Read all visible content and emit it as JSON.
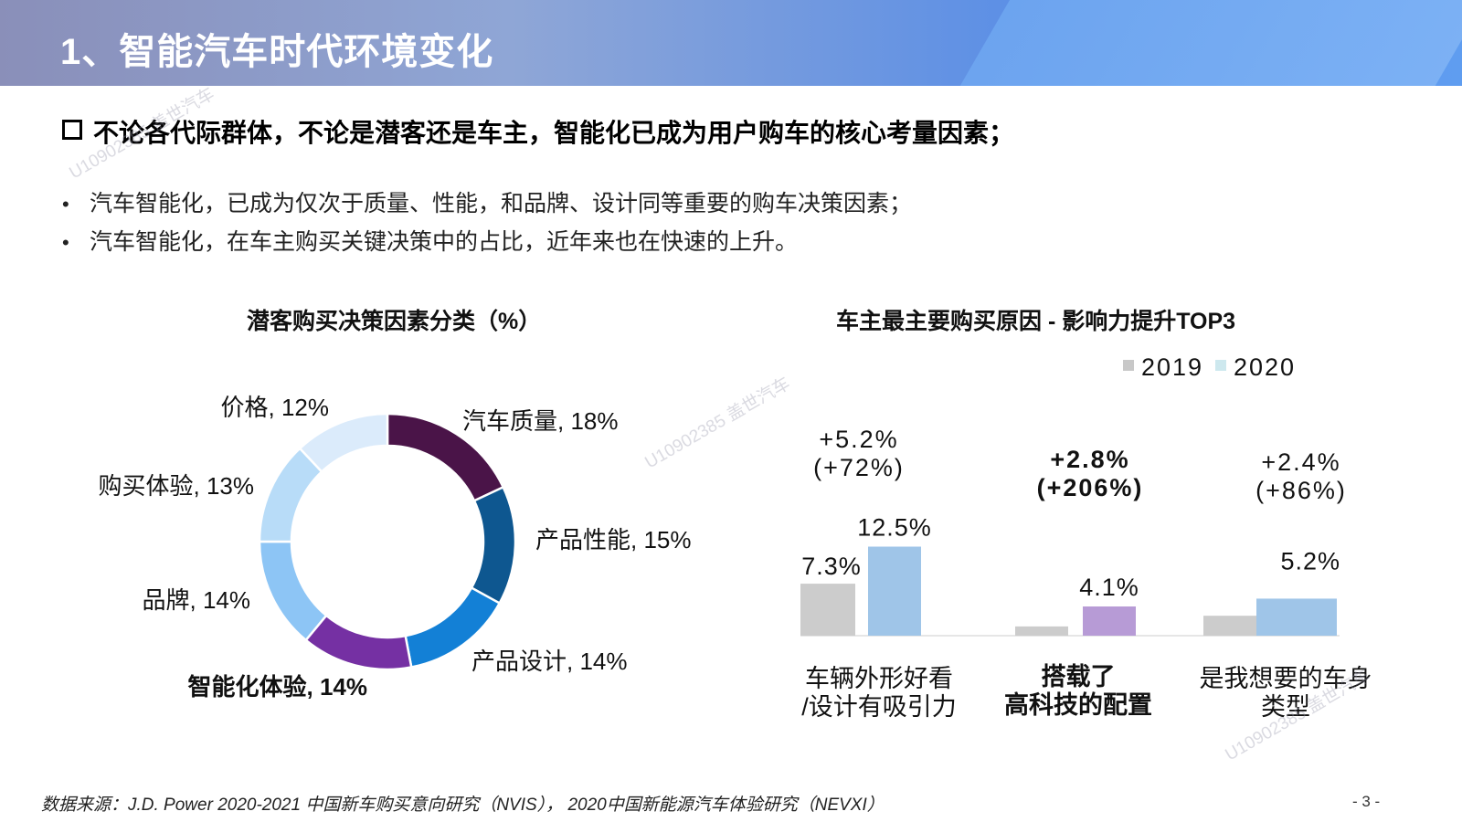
{
  "header": {
    "title": "1、智能汽车时代环境变化"
  },
  "headline": "不论各代际群体，不论是潜客还是车主，智能化已成为用户购车的核心考量因素；",
  "bullets": [
    "汽车智能化，已成为仅次于质量、性能，和品牌、设计同等重要的购车决策因素；",
    "汽车智能化，在车主购买关键决策中的占比，近年来也在快速的上升。"
  ],
  "watermark": "U10902385 盖世汽车",
  "footer": "数据来源：J.D. Power 2020-2021 中国新车购买意向研究（NVIS）， 2020中国新能源汽车体验研究（NEVXI）",
  "page_number": "- 3 -",
  "chart_data": [
    {
      "type": "pie",
      "title": "潜客购买决策因素分类（%）",
      "slices": [
        {
          "label": "汽车质量, 18%",
          "value": 18,
          "color": "#4a1448",
          "bold": false
        },
        {
          "label": "产品性能, 15%",
          "value": 15,
          "color": "#0e5790",
          "bold": false
        },
        {
          "label": "产品设计, 14%",
          "value": 14,
          "color": "#1380d6",
          "bold": false
        },
        {
          "label": "智能化体验, 14%",
          "value": 14,
          "color": "#7530a3",
          "bold": true
        },
        {
          "label": "品牌, 14%",
          "value": 14,
          "color": "#8dc5f5",
          "bold": false
        },
        {
          "label": "购买体验, 13%",
          "value": 13,
          "color": "#b8dcf8",
          "bold": false
        },
        {
          "label": "价格, 12%",
          "value": 12,
          "color": "#dbebfb",
          "bold": false
        }
      ]
    },
    {
      "type": "bar",
      "title": "车主最主要购买原因 - 影响力提升TOP3",
      "legend_position": "top-right",
      "series": [
        {
          "name": "2019",
          "color": "#cccccc",
          "values": [
            7.3,
            1.3,
            2.8
          ]
        },
        {
          "name": "2020",
          "color": "#9fc5e8",
          "values": [
            12.5,
            4.1,
            5.2
          ]
        }
      ],
      "legend_colors": [
        "#c8c8c8",
        "#cde8ee"
      ],
      "categories": [
        {
          "lines": [
            "车辆外形好看",
            "/设计有吸引力"
          ],
          "bold": false
        },
        {
          "lines": [
            "搭载了",
            "高科技的配置"
          ],
          "bold": true
        },
        {
          "lines": [
            "是我想要的车身",
            "类型"
          ],
          "bold": false
        }
      ],
      "bar_value_labels": [
        {
          "text2019": "7.3%",
          "text2020": "12.5%"
        },
        {
          "text2019": "",
          "text2020": "4.1%"
        },
        {
          "text2019": "",
          "text2020": "5.2%"
        }
      ],
      "highlight_2020_colors": [
        "#9fc5e8",
        "#b79bd6",
        "#9fc5e8"
      ],
      "increase_labels": [
        {
          "lines": [
            "+5.2%",
            "(+72%)"
          ],
          "bold": false
        },
        {
          "lines": [
            "+2.8%",
            "(+206%)"
          ],
          "bold": true
        },
        {
          "lines": [
            "+2.4%",
            "(+86%)"
          ],
          "bold": false
        }
      ]
    }
  ]
}
